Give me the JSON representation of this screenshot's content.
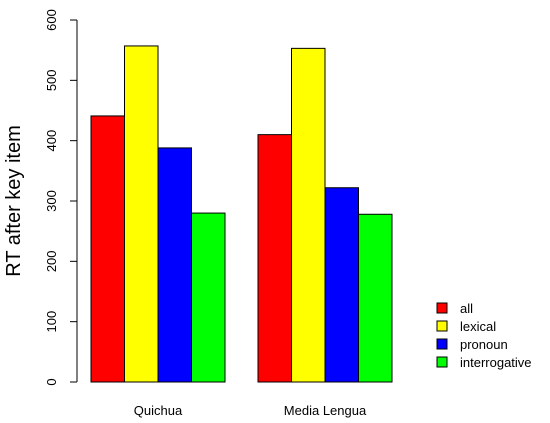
{
  "chart_data": {
    "type": "bar",
    "layout": "grouped",
    "categories": [
      "Quichua",
      "Media Lengua"
    ],
    "series": [
      {
        "name": "all",
        "color": "#ff0000",
        "values": [
          441,
          410
        ]
      },
      {
        "name": "lexical",
        "color": "#ffff00",
        "values": [
          557,
          553
        ]
      },
      {
        "name": "pronoun",
        "color": "#0000ff",
        "values": [
          388,
          322
        ]
      },
      {
        "name": "interrogative",
        "color": "#00ff00",
        "values": [
          280,
          278
        ]
      }
    ],
    "ylabel": "RT after key item",
    "xlabel": "",
    "ylim": [
      0,
      600
    ],
    "yticks": [
      0,
      100,
      200,
      300,
      400,
      500,
      600
    ],
    "legend_position": "bottom-right",
    "grid": false
  }
}
